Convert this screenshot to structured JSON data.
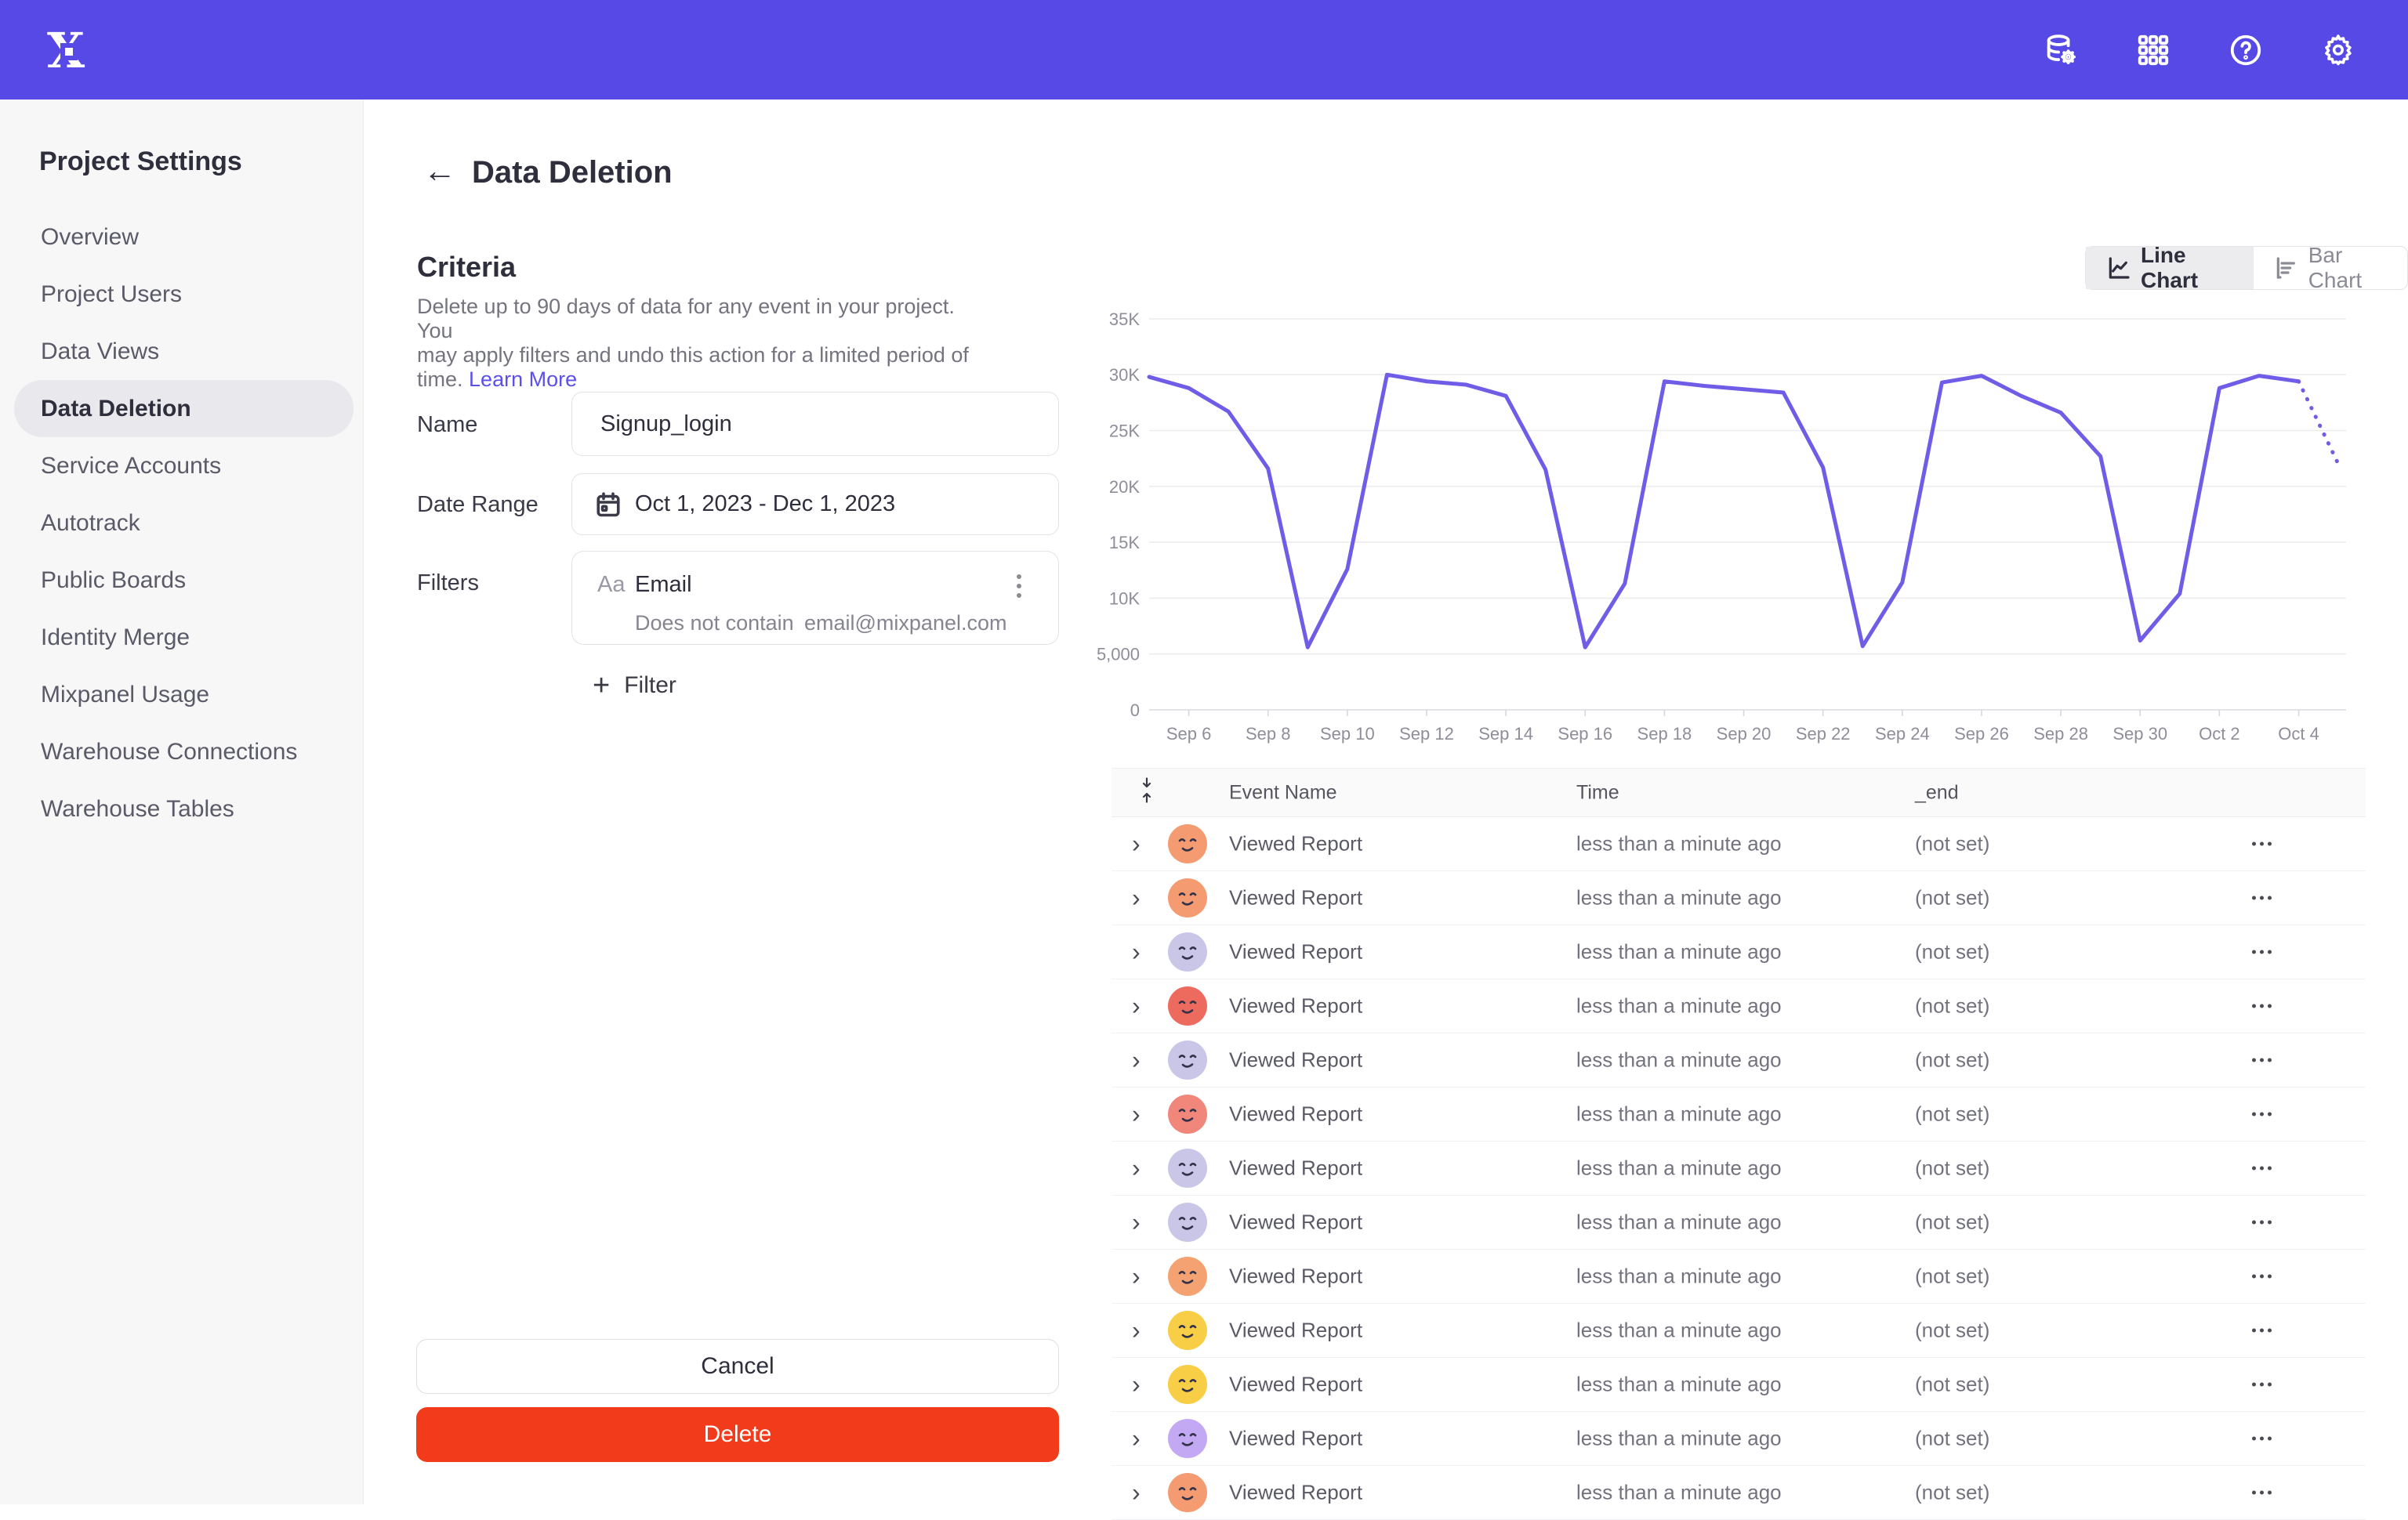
{
  "topbar": {
    "icons": [
      "data-management",
      "apps-grid",
      "help",
      "settings"
    ]
  },
  "sidebar": {
    "title": "Project Settings",
    "items": [
      {
        "label": "Overview",
        "active": false
      },
      {
        "label": "Project Users",
        "active": false
      },
      {
        "label": "Data Views",
        "active": false
      },
      {
        "label": "Data Deletion",
        "active": true
      },
      {
        "label": "Service Accounts",
        "active": false
      },
      {
        "label": "Autotrack",
        "active": false
      },
      {
        "label": "Public Boards",
        "active": false
      },
      {
        "label": "Identity Merge",
        "active": false
      },
      {
        "label": "Mixpanel Usage",
        "active": false
      },
      {
        "label": "Warehouse Connections",
        "active": false
      },
      {
        "label": "Warehouse Tables",
        "active": false
      }
    ]
  },
  "page": {
    "title": "Data Deletion"
  },
  "criteria": {
    "heading": "Criteria",
    "description_line1": "Delete up to 90 days of data for any event in your project. You",
    "description_line2": "may apply filters and undo this action for a limited period of",
    "description_line3": "time.",
    "learn_more_label": "Learn More",
    "name_label": "Name",
    "name_value": "Signup_login",
    "date_label": "Date Range",
    "date_value": "Oct 1, 2023 - Dec 1, 2023",
    "filters_label": "Filters",
    "filter": {
      "type_glyph": "Aa",
      "property": "Email",
      "operator": "Does not contain",
      "value": "email@mixpanel.com"
    },
    "add_filter_label": "Filter",
    "cancel_label": "Cancel",
    "delete_label": "Delete"
  },
  "chart_toggle": {
    "line_label": "Line Chart",
    "bar_label": "Bar Chart",
    "active": "line"
  },
  "chart_data": {
    "type": "line",
    "title": "",
    "xlabel": "",
    "ylabel": "",
    "line_color": "#6F5DE8",
    "grid": true,
    "legend": "none",
    "ylim": [
      0,
      35000
    ],
    "y_ticks": [
      "0",
      "5,000",
      "10K",
      "15K",
      "20K",
      "25K",
      "30K",
      "35K"
    ],
    "x_tick_labels": [
      "Sep 6",
      "Sep 8",
      "Sep 10",
      "Sep 12",
      "Sep 14",
      "Sep 16",
      "Sep 18",
      "Sep 20",
      "Sep 22",
      "Sep 24",
      "Sep 26",
      "Sep 28",
      "Sep 30",
      "Oct 2",
      "Oct 4"
    ],
    "x": [
      "Sep 5",
      "Sep 6",
      "Sep 7",
      "Sep 8",
      "Sep 9",
      "Sep 10",
      "Sep 11",
      "Sep 12",
      "Sep 13",
      "Sep 14",
      "Sep 15",
      "Sep 16",
      "Sep 17",
      "Sep 18",
      "Sep 19",
      "Sep 20",
      "Sep 21",
      "Sep 22",
      "Sep 23",
      "Sep 24",
      "Sep 25",
      "Sep 26",
      "Sep 27",
      "Sep 28",
      "Sep 29",
      "Sep 30",
      "Oct 1",
      "Oct 2",
      "Oct 3",
      "Oct 4",
      "Oct 5"
    ],
    "values": [
      29800,
      28800,
      26700,
      21600,
      5600,
      12600,
      30000,
      29400,
      29100,
      28100,
      21500,
      5600,
      11300,
      29400,
      29000,
      28700,
      28400,
      21700,
      5700,
      11400,
      29300,
      29900,
      28100,
      26600,
      22700,
      6200,
      10400,
      28800,
      29900,
      29400,
      22000
    ],
    "projection_from_index": 29
  },
  "table": {
    "columns": [
      "Event Name",
      "Time",
      "_end"
    ],
    "rows": [
      {
        "event": "Viewed Report",
        "time": "less than a minute ago",
        "end": "(not set)",
        "avatar_color": "#F49B71"
      },
      {
        "event": "Viewed Report",
        "time": "less than a minute ago",
        "end": "(not set)",
        "avatar_color": "#F49B71"
      },
      {
        "event": "Viewed Report",
        "time": "less than a minute ago",
        "end": "(not set)",
        "avatar_color": "#C9C6E8"
      },
      {
        "event": "Viewed Report",
        "time": "less than a minute ago",
        "end": "(not set)",
        "avatar_color": "#ED6A5E"
      },
      {
        "event": "Viewed Report",
        "time": "less than a minute ago",
        "end": "(not set)",
        "avatar_color": "#C9C6E8"
      },
      {
        "event": "Viewed Report",
        "time": "less than a minute ago",
        "end": "(not set)",
        "avatar_color": "#F1867B"
      },
      {
        "event": "Viewed Report",
        "time": "less than a minute ago",
        "end": "(not set)",
        "avatar_color": "#C9C6E8"
      },
      {
        "event": "Viewed Report",
        "time": "less than a minute ago",
        "end": "(not set)",
        "avatar_color": "#C9C6E8"
      },
      {
        "event": "Viewed Report",
        "time": "less than a minute ago",
        "end": "(not set)",
        "avatar_color": "#F4A272"
      },
      {
        "event": "Viewed Report",
        "time": "less than a minute ago",
        "end": "(not set)",
        "avatar_color": "#F7CE45"
      },
      {
        "event": "Viewed Report",
        "time": "less than a minute ago",
        "end": "(not set)",
        "avatar_color": "#F7CE45"
      },
      {
        "event": "Viewed Report",
        "time": "less than a minute ago",
        "end": "(not set)",
        "avatar_color": "#C3A9F3"
      },
      {
        "event": "Viewed Report",
        "time": "less than a minute ago",
        "end": "(not set)",
        "avatar_color": "#F49B71"
      }
    ]
  }
}
